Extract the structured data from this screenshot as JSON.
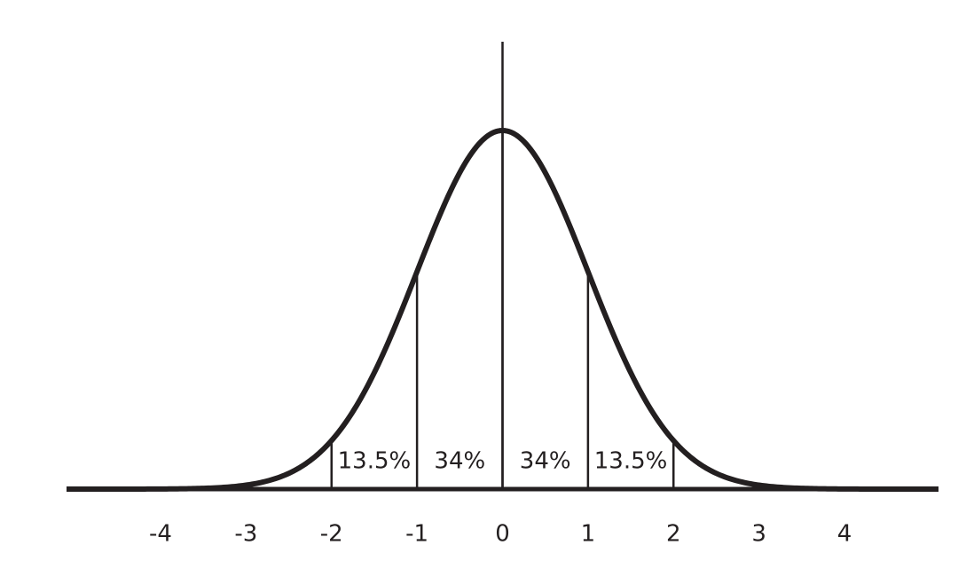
{
  "chart_data": {
    "type": "normal",
    "xlim": [
      -5.1,
      5.1
    ],
    "xticks": [
      -4,
      -3,
      -2,
      -1,
      0,
      1,
      2,
      3,
      4
    ],
    "dividers": [
      -2,
      -1,
      0,
      1,
      2
    ],
    "values": [
      13.5,
      34,
      34,
      13.5
    ],
    "value_labels": [
      "13.5%",
      "34%",
      "34%",
      "13.5%"
    ]
  }
}
